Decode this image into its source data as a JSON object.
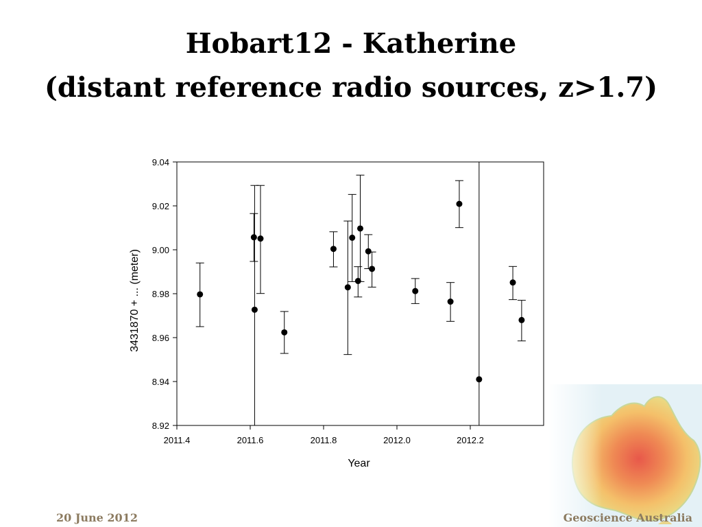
{
  "slide": {
    "title_line1": "Hobart12  - Katherine",
    "title_line2": "(distant reference radio sources, z>1.7)",
    "footer_date": "20 June 2012",
    "footer_org": "Geoscience Australia",
    "footer_color": "#8c7b60"
  },
  "chart_data": {
    "type": "scatter",
    "xlabel": "Year",
    "ylabel": "3431870 + ... (meter)",
    "xlim": [
      2011.4,
      2012.4
    ],
    "ylim": [
      8.92,
      9.04
    ],
    "xticks": [
      2011.4,
      2011.6,
      2011.8,
      2012.0,
      2012.2
    ],
    "xtick_labels": [
      "2011.4",
      "2011.6",
      "2011.8",
      "2012.0",
      "2012.2"
    ],
    "yticks": [
      8.92,
      8.94,
      8.96,
      8.98,
      9.0,
      9.02,
      9.04
    ],
    "ytick_labels": [
      "8.92",
      "8.94",
      "8.96",
      "8.98",
      "9.00",
      "9.02",
      "9.04"
    ],
    "grid": false,
    "error_bars": true,
    "points": [
      {
        "x": 2011.463,
        "y": 8.9797,
        "low": 8.965,
        "high": 8.994
      },
      {
        "x": 2011.61,
        "y": 9.0057,
        "low": 8.9947,
        "high": 9.0165
      },
      {
        "x": 2011.612,
        "y": 8.9727,
        "low": 8.9,
        "high": 9.0293
      },
      {
        "x": 2011.628,
        "y": 9.0051,
        "low": 8.9801,
        "high": 9.0293
      },
      {
        "x": 2011.693,
        "y": 8.9624,
        "low": 8.9528,
        "high": 8.9719
      },
      {
        "x": 2011.827,
        "y": 9.0004,
        "low": 8.9922,
        "high": 9.0082
      },
      {
        "x": 2011.866,
        "y": 8.9829,
        "low": 8.9523,
        "high": 9.0131
      },
      {
        "x": 2011.878,
        "y": 9.0055,
        "low": 8.9855,
        "high": 9.0252
      },
      {
        "x": 2011.894,
        "y": 8.9858,
        "low": 8.9785,
        "high": 8.9923
      },
      {
        "x": 2011.9,
        "y": 9.0097,
        "low": 8.9855,
        "high": 9.034
      },
      {
        "x": 2011.922,
        "y": 8.9993,
        "low": 8.9914,
        "high": 9.0069
      },
      {
        "x": 2011.932,
        "y": 8.9913,
        "low": 8.983,
        "high": 8.999
      },
      {
        "x": 2012.05,
        "y": 8.9812,
        "low": 8.9755,
        "high": 8.9869
      },
      {
        "x": 2012.146,
        "y": 8.9764,
        "low": 8.9674,
        "high": 8.9851
      },
      {
        "x": 2012.17,
        "y": 9.0209,
        "low": 9.0101,
        "high": 9.0315
      },
      {
        "x": 2012.224,
        "y": 8.941,
        "low": 8.9,
        "high": 9.05
      },
      {
        "x": 2012.316,
        "y": 8.9851,
        "low": 8.9773,
        "high": 8.9924
      },
      {
        "x": 2012.34,
        "y": 8.968,
        "low": 8.9585,
        "high": 8.977
      }
    ]
  }
}
